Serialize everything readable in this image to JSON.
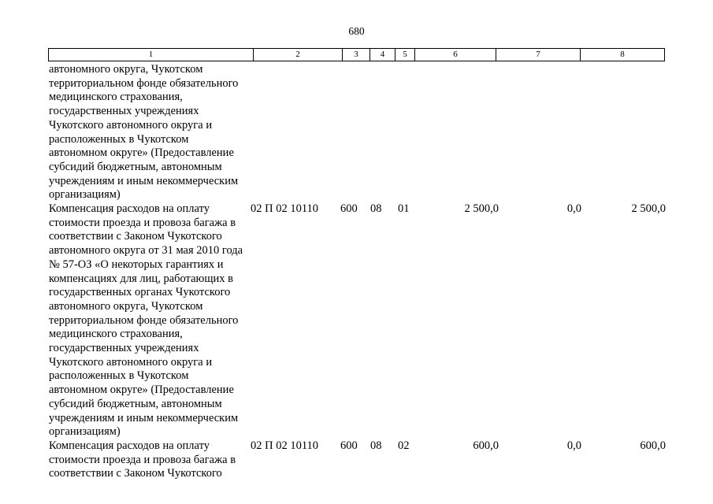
{
  "page": {
    "number": "680"
  },
  "table": {
    "header": {
      "columns": [
        "1",
        "2",
        "3",
        "4",
        "5",
        "6",
        "7",
        "8"
      ]
    },
    "rows": [
      {
        "lines": [
          "автономного округа, Чукотском",
          "территориальном фонде обязательного",
          "медицинского страхования,",
          "государственных учреждениях",
          "Чукотского автономного округа и",
          "расположенных в Чукотском",
          "автономном округе» (Предоставление",
          "субсидий бюджетным, автономным",
          "учреждениям и иным некоммерческим",
          "организациям)"
        ]
      },
      {
        "lines": [
          "Компенсация расходов на оплату",
          "стоимости проезда и провоза багажа в",
          "соответствии с Законом Чукотского",
          "автономного округа от 31 мая 2010 года",
          "№ 57-ОЗ «О некоторых гарантиях и",
          "компенсациях для лиц, работающих в",
          "государственных органах Чукотского",
          "автономного округа, Чукотском",
          "территориальном фонде обязательного",
          "медицинского страхования,",
          "государственных учреждениях",
          "Чукотского автономного округа и",
          "расположенных в Чукотском",
          "автономном округе» (Предоставление",
          "субсидий бюджетным, автономным",
          "учреждениям и иным некоммерческим",
          "организациям)"
        ],
        "values": {
          "code": "02 П 02 10110",
          "col3": "600",
          "col4": "08",
          "col5": "01",
          "col6": "2 500,0",
          "col7": "0,0",
          "col8": "2 500,0"
        }
      },
      {
        "lines": [
          "Компенсация расходов на оплату",
          "стоимости проезда и провоза багажа в",
          "соответствии с Законом Чукотского"
        ],
        "values": {
          "code": "02 П 02 10110",
          "col3": "600",
          "col4": "08",
          "col5": "02",
          "col6": "600,0",
          "col7": "0,0",
          "col8": "600,0"
        }
      }
    ]
  }
}
